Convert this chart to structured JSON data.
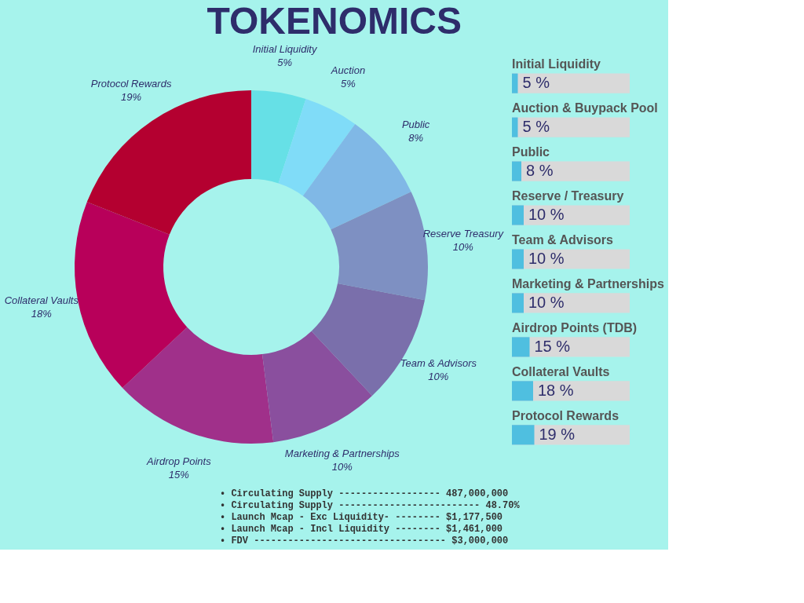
{
  "chart_data": [
    {
      "type": "donut",
      "title": "TOKENOMICS",
      "categories": [
        "Initial Liquidity",
        "Auction",
        "Public",
        "Reserve Treasury",
        "Team & Advisors",
        "Marketing & Partnerships",
        "Airdrop Points",
        "Collateral Vaults",
        "Protocol Rewards"
      ],
      "values": [
        5,
        5,
        8,
        10,
        10,
        10,
        15,
        18,
        19
      ],
      "value_labels": [
        "5%",
        "5%",
        "8%",
        "10%",
        "10%",
        "10%",
        "15%",
        "18%",
        "19%"
      ],
      "colors": [
        "#66e0e6",
        "#80dcf8",
        "#80b8e6",
        "#7e90c2",
        "#7a6fab",
        "#8a4f9e",
        "#a0308a",
        "#b8005a",
        "#b40030"
      ],
      "annotations": [
        "• Circulating Supply ------------------ 487,000,000",
        "• Circulating Supply ------------------------- 48.70%",
        "• Launch Mcap - Exc Liquidity- -------- $1,177,500",
        "• Launch Mcap - Incl Liquidity -------- $1,461,000",
        "• FDV ---------------------------------- $3,000,000"
      ]
    },
    {
      "type": "bar",
      "orientation": "horizontal",
      "categories": [
        "Initial Liquidity",
        "Auction & Buypack Pool",
        "Public",
        "Reserve / Treasury",
        "Team & Advisors",
        "Marketing & Partnerships",
        "Airdrop Points (TDB)",
        "Collateral Vaults",
        "Protocol Rewards"
      ],
      "values": [
        5,
        5,
        8,
        10,
        10,
        10,
        15,
        18,
        19
      ],
      "value_labels": [
        "5 %",
        "5 %",
        "8 %",
        "10 %",
        "10 %",
        "10 %",
        "15 %",
        "18 %",
        "19 %"
      ],
      "color": "#4fbfe0",
      "tick_labels": false
    }
  ]
}
